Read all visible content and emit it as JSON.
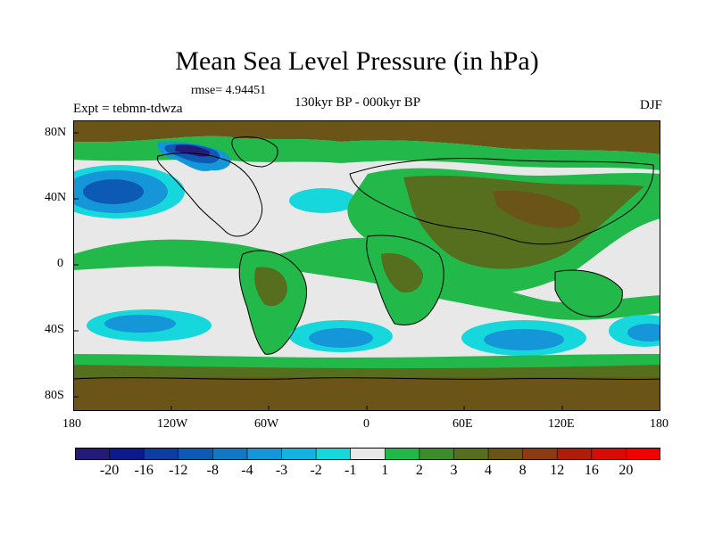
{
  "title": "Mean Sea Level Pressure (in hPa)",
  "rmse": "rmse= 4.94451",
  "expt": "Expt = tebmn-tdwza",
  "period": "130kyr BP - 000kyr BP",
  "season": "DJF",
  "axes": {
    "x_ticks": [
      "180",
      "120W",
      "60W",
      "0",
      "60E",
      "120E",
      "180"
    ],
    "y_ticks": [
      "80N",
      "40N",
      "0",
      "40S",
      "80S"
    ]
  },
  "colorbar": {
    "labels": [
      "-20",
      "-16",
      "-12",
      "-8",
      "-4",
      "-3",
      "-2",
      "-1",
      "1",
      "2",
      "3",
      "4",
      "8",
      "12",
      "16",
      "20"
    ],
    "colors": [
      "#241a7a",
      "#0c1a8c",
      "#0b3ea0",
      "#0d5ab4",
      "#1078c4",
      "#1596d8",
      "#14b2e0",
      "#16d8dc",
      "#e8e8e8",
      "#21b84a",
      "#3c8c2a",
      "#556f1e",
      "#6a5417",
      "#8b3a12",
      "#b01c0a",
      "#d70c07",
      "#f10000"
    ]
  },
  "map": {
    "land_mask_colors": {
      "ocean_neutral": "#e8e8e8",
      "green": "#22b84a",
      "olive": "#556f1e",
      "brown": "#6a5417",
      "cyan": "#16d8dc",
      "blue": "#1596d8",
      "deep_blue": "#0d5ab4",
      "navy": "#241a7a"
    }
  }
}
